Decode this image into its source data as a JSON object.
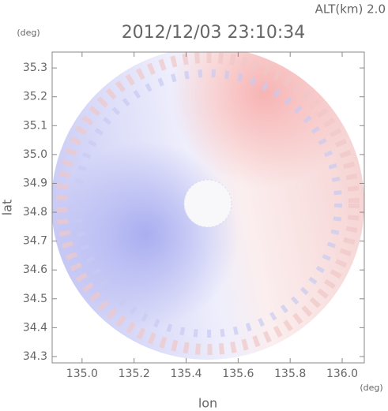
{
  "chart_data": {
    "type": "radar-map",
    "title": "2012/12/03 23:10:34",
    "subtitle": "ALT(km) 2.0",
    "x_label": "lon",
    "y_label": "lat",
    "x_unit": "(deg)",
    "y_unit": "(deg)",
    "xlim": [
      134.885,
      136.085
    ],
    "ylim": [
      34.278,
      35.355
    ],
    "xticks": [
      {
        "value": 135.0,
        "label": "135.0"
      },
      135.2,
      135.4,
      135.6,
      135.8,
      {
        "value": 136.0,
        "label": "136.0"
      }
    ],
    "yticks": [
      34.3,
      34.4,
      34.5,
      34.6,
      34.7,
      34.8,
      34.9,
      {
        "value": 35.0,
        "label": "35.0"
      },
      35.1,
      35.2,
      35.3
    ]
  }
}
